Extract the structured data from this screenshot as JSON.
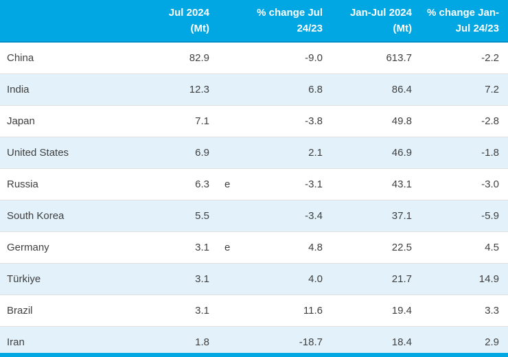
{
  "colors": {
    "header_bg": "#00A7E2",
    "header_text": "#FFFFFF",
    "header_bottom_border": "#0090C8",
    "row_bg": "#FFFFFF",
    "row_alt_bg": "#E3F2FA",
    "row_separator": "#DFDFDF",
    "body_text": "#3E3E3E",
    "bottom_bar": "#00A7E2"
  },
  "table": {
    "header": {
      "country": "",
      "jul_2024": "Jul 2024 (Mt)",
      "flag": "",
      "pct_change_jul": "% change Jul 24/23",
      "jan_jul_2024": "Jan-Jul 2024 (Mt)",
      "pct_change_jan_jul": "% change Jan-Jul 24/23"
    },
    "rows": [
      {
        "country": "China",
        "jul_2024": "82.9",
        "flag": "",
        "pct_change_jul": "-9.0",
        "jan_jul_2024": "613.7",
        "pct_change_jan_jul": "-2.2"
      },
      {
        "country": "India",
        "jul_2024": "12.3",
        "flag": "",
        "pct_change_jul": "6.8",
        "jan_jul_2024": "86.4",
        "pct_change_jan_jul": "7.2"
      },
      {
        "country": "Japan",
        "jul_2024": "7.1",
        "flag": "",
        "pct_change_jul": "-3.8",
        "jan_jul_2024": "49.8",
        "pct_change_jan_jul": "-2.8"
      },
      {
        "country": "United States",
        "jul_2024": "6.9",
        "flag": "",
        "pct_change_jul": "2.1",
        "jan_jul_2024": "46.9",
        "pct_change_jan_jul": "-1.8"
      },
      {
        "country": "Russia",
        "jul_2024": "6.3",
        "flag": "e",
        "pct_change_jul": "-3.1",
        "jan_jul_2024": "43.1",
        "pct_change_jan_jul": "-3.0"
      },
      {
        "country": "South Korea",
        "jul_2024": "5.5",
        "flag": "",
        "pct_change_jul": "-3.4",
        "jan_jul_2024": "37.1",
        "pct_change_jan_jul": "-5.9"
      },
      {
        "country": "Germany",
        "jul_2024": "3.1",
        "flag": "e",
        "pct_change_jul": "4.8",
        "jan_jul_2024": "22.5",
        "pct_change_jan_jul": "4.5"
      },
      {
        "country": "Türkiye",
        "jul_2024": "3.1",
        "flag": "",
        "pct_change_jul": "4.0",
        "jan_jul_2024": "21.7",
        "pct_change_jan_jul": "14.9"
      },
      {
        "country": "Brazil",
        "jul_2024": "3.1",
        "flag": "",
        "pct_change_jul": "11.6",
        "jan_jul_2024": "19.4",
        "pct_change_jan_jul": "3.3"
      },
      {
        "country": "Iran",
        "jul_2024": "1.8",
        "flag": "",
        "pct_change_jul": "-18.7",
        "jan_jul_2024": "18.4",
        "pct_change_jan_jul": "2.9"
      }
    ]
  },
  "chart_data": {
    "type": "table",
    "title": "",
    "columns": [
      "",
      "Jul 2024 (Mt)",
      "% change Jul 24/23",
      "Jan-Jul 2024 (Mt)",
      "% change Jan-Jul 24/23"
    ],
    "rows": [
      [
        "China",
        82.9,
        -9.0,
        613.7,
        -2.2
      ],
      [
        "India",
        12.3,
        6.8,
        86.4,
        7.2
      ],
      [
        "Japan",
        7.1,
        -3.8,
        49.8,
        -2.8
      ],
      [
        "United States",
        6.9,
        2.1,
        46.9,
        -1.8
      ],
      [
        "Russia",
        6.3,
        -3.1,
        43.1,
        -3.0
      ],
      [
        "South Korea",
        5.5,
        -3.4,
        37.1,
        -5.9
      ],
      [
        "Germany",
        3.1,
        4.8,
        22.5,
        4.5
      ],
      [
        "Türkiye",
        3.1,
        4.0,
        21.7,
        14.9
      ],
      [
        "Brazil",
        3.1,
        11.6,
        19.4,
        3.3
      ],
      [
        "Iran",
        1.8,
        -18.7,
        18.4,
        2.9
      ]
    ],
    "estimate_flags": {
      "Russia": "e",
      "Germany": "e"
    },
    "notes": "rows alternate white and light blue; all numeric columns right-aligned"
  }
}
